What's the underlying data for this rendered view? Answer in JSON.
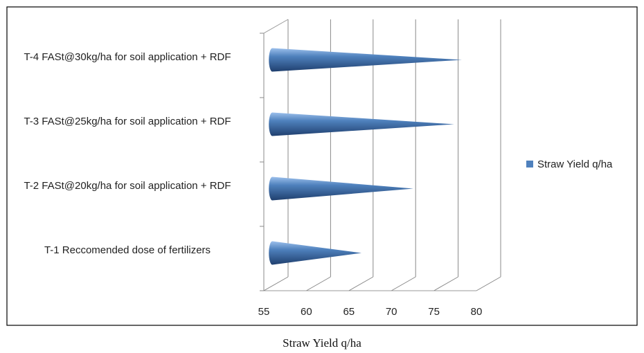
{
  "chart_data": {
    "type": "bar3d-cone",
    "orientation": "horizontal",
    "caption": "Straw Yield q/ha",
    "categories": [
      "T-1 Reccomended dose of fertilizers",
      "T-2 FASt@20kg/ha for soil application + RDF",
      "T-3 FASt@25kg/ha for soil application + RDF",
      "T-4 FASt@30kg/ha for soil application + RDF"
    ],
    "series": [
      {
        "name": "Straw Yield q/ha",
        "color": "#4f81bd",
        "values": [
          65.2,
          71.3,
          76.1,
          77.0
        ]
      }
    ],
    "xlim": [
      55,
      80
    ],
    "xticks": [
      55,
      60,
      65,
      70,
      75,
      80
    ],
    "grid": true,
    "legend": "right"
  }
}
